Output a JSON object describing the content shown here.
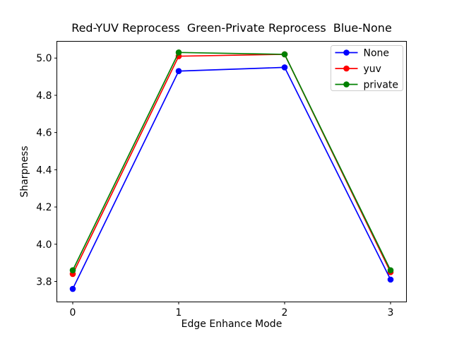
{
  "title": "Red-YUV Reprocess  Green-Private Reprocess  Blue-None",
  "chart_data": {
    "type": "line",
    "title": "Red-YUV Reprocess  Green-Private Reprocess  Blue-None",
    "xlabel": "Edge Enhance Mode",
    "ylabel": "Sharpness",
    "x": [
      0,
      1,
      2,
      3
    ],
    "series": [
      {
        "name": "None",
        "color": "#0000ff",
        "marker": "o",
        "values": [
          3.76,
          4.93,
          4.95,
          3.81
        ]
      },
      {
        "name": "yuv",
        "color": "#ff0000",
        "marker": "o",
        "values": [
          3.84,
          5.01,
          5.02,
          3.85
        ]
      },
      {
        "name": "private",
        "color": "#008000",
        "marker": "o",
        "values": [
          3.86,
          5.03,
          5.02,
          3.86
        ]
      }
    ],
    "xticks": [
      {
        "v": 0,
        "label": "0"
      },
      {
        "v": 1,
        "label": "1"
      },
      {
        "v": 2,
        "label": "2"
      },
      {
        "v": 3,
        "label": "3"
      }
    ],
    "yticks": [
      {
        "v": 3.8,
        "label": "3.8"
      },
      {
        "v": 4.0,
        "label": "4.0"
      },
      {
        "v": 4.2,
        "label": "4.2"
      },
      {
        "v": 4.4,
        "label": "4.4"
      },
      {
        "v": 4.6,
        "label": "4.6"
      },
      {
        "v": 4.8,
        "label": "4.8"
      },
      {
        "v": 5.0,
        "label": "5.0"
      }
    ],
    "xlim": [
      -0.15,
      3.15
    ],
    "ylim": [
      3.69,
      5.09
    ],
    "grid": false,
    "legend": {
      "position": "upper right",
      "entries": [
        "None",
        "yuv",
        "private"
      ]
    },
    "colors": {
      "axes": "#000000",
      "legend_border": "#cccccc",
      "background": "#ffffff"
    }
  }
}
